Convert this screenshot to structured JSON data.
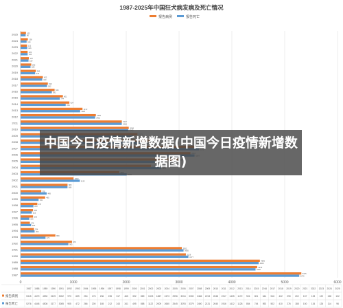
{
  "overlay": {
    "text": "中国今日疫情新增数据(中国今日疫情新增数据图)"
  },
  "colors": {
    "incidence": "#ED7D31",
    "deaths": "#5B9BD5",
    "grid": "#D9D9D9",
    "axis": "#BFBFBF",
    "text": "#595959"
  },
  "chart_data": {
    "type": "bar",
    "orientation": "horizontal",
    "title": "1987-2025年中国狂犬病发病及死亡情况",
    "legend": {
      "position": "top",
      "entries": [
        "报告病例",
        "报告死亡"
      ]
    },
    "categories": [
      "1987",
      "1988",
      "1989",
      "1990",
      "1991",
      "1992",
      "1993",
      "1994",
      "1995",
      "1996",
      "1997",
      "1998",
      "1999",
      "2000",
      "2001",
      "2002",
      "2003",
      "2004",
      "2005",
      "2006",
      "2007",
      "2008",
      "2009",
      "2010",
      "2011",
      "2012",
      "2013",
      "2014",
      "2015",
      "2016",
      "2017",
      "2018",
      "2019",
      "2020",
      "2021",
      "2022",
      "2023",
      "2024",
      "2025"
    ],
    "series": [
      {
        "name": "报告病例",
        "values": [
          5315,
          4479,
          4530,
          3129,
          3052,
          973,
          659,
          254,
          176,
          236,
          235,
          317,
          465,
          392,
          889,
          1003,
          1867,
          2473,
          2996,
          3216,
          3300,
          2466,
          2213,
          2048,
          1917,
          1425,
          1172,
          924,
          801,
          644,
          516,
          422,
          290,
          202,
          157,
          133,
          122,
          138,
          102
        ]
      },
      {
        "name": "报告死亡",
        "values": [
          5276,
          4448,
          4508,
          3177,
          3085,
          905,
          472,
          266,
          200,
          165,
          212,
          243,
          341,
          495,
          888,
          1122,
          2009,
          2660,
          2545,
          3293,
          3379,
          2400,
          2131,
          2040,
          1916,
          1412,
          1128,
          854,
          744,
          592,
          502,
          410,
          276,
          188,
          150,
          134,
          126,
          114,
          96
        ]
      }
    ],
    "table_rows": [
      "报告病例",
      "报告死亡"
    ],
    "xlim": [
      0,
      6000
    ],
    "xticks": [
      0,
      1000,
      2000,
      3000,
      4000,
      5000,
      6000
    ],
    "grid": true
  }
}
